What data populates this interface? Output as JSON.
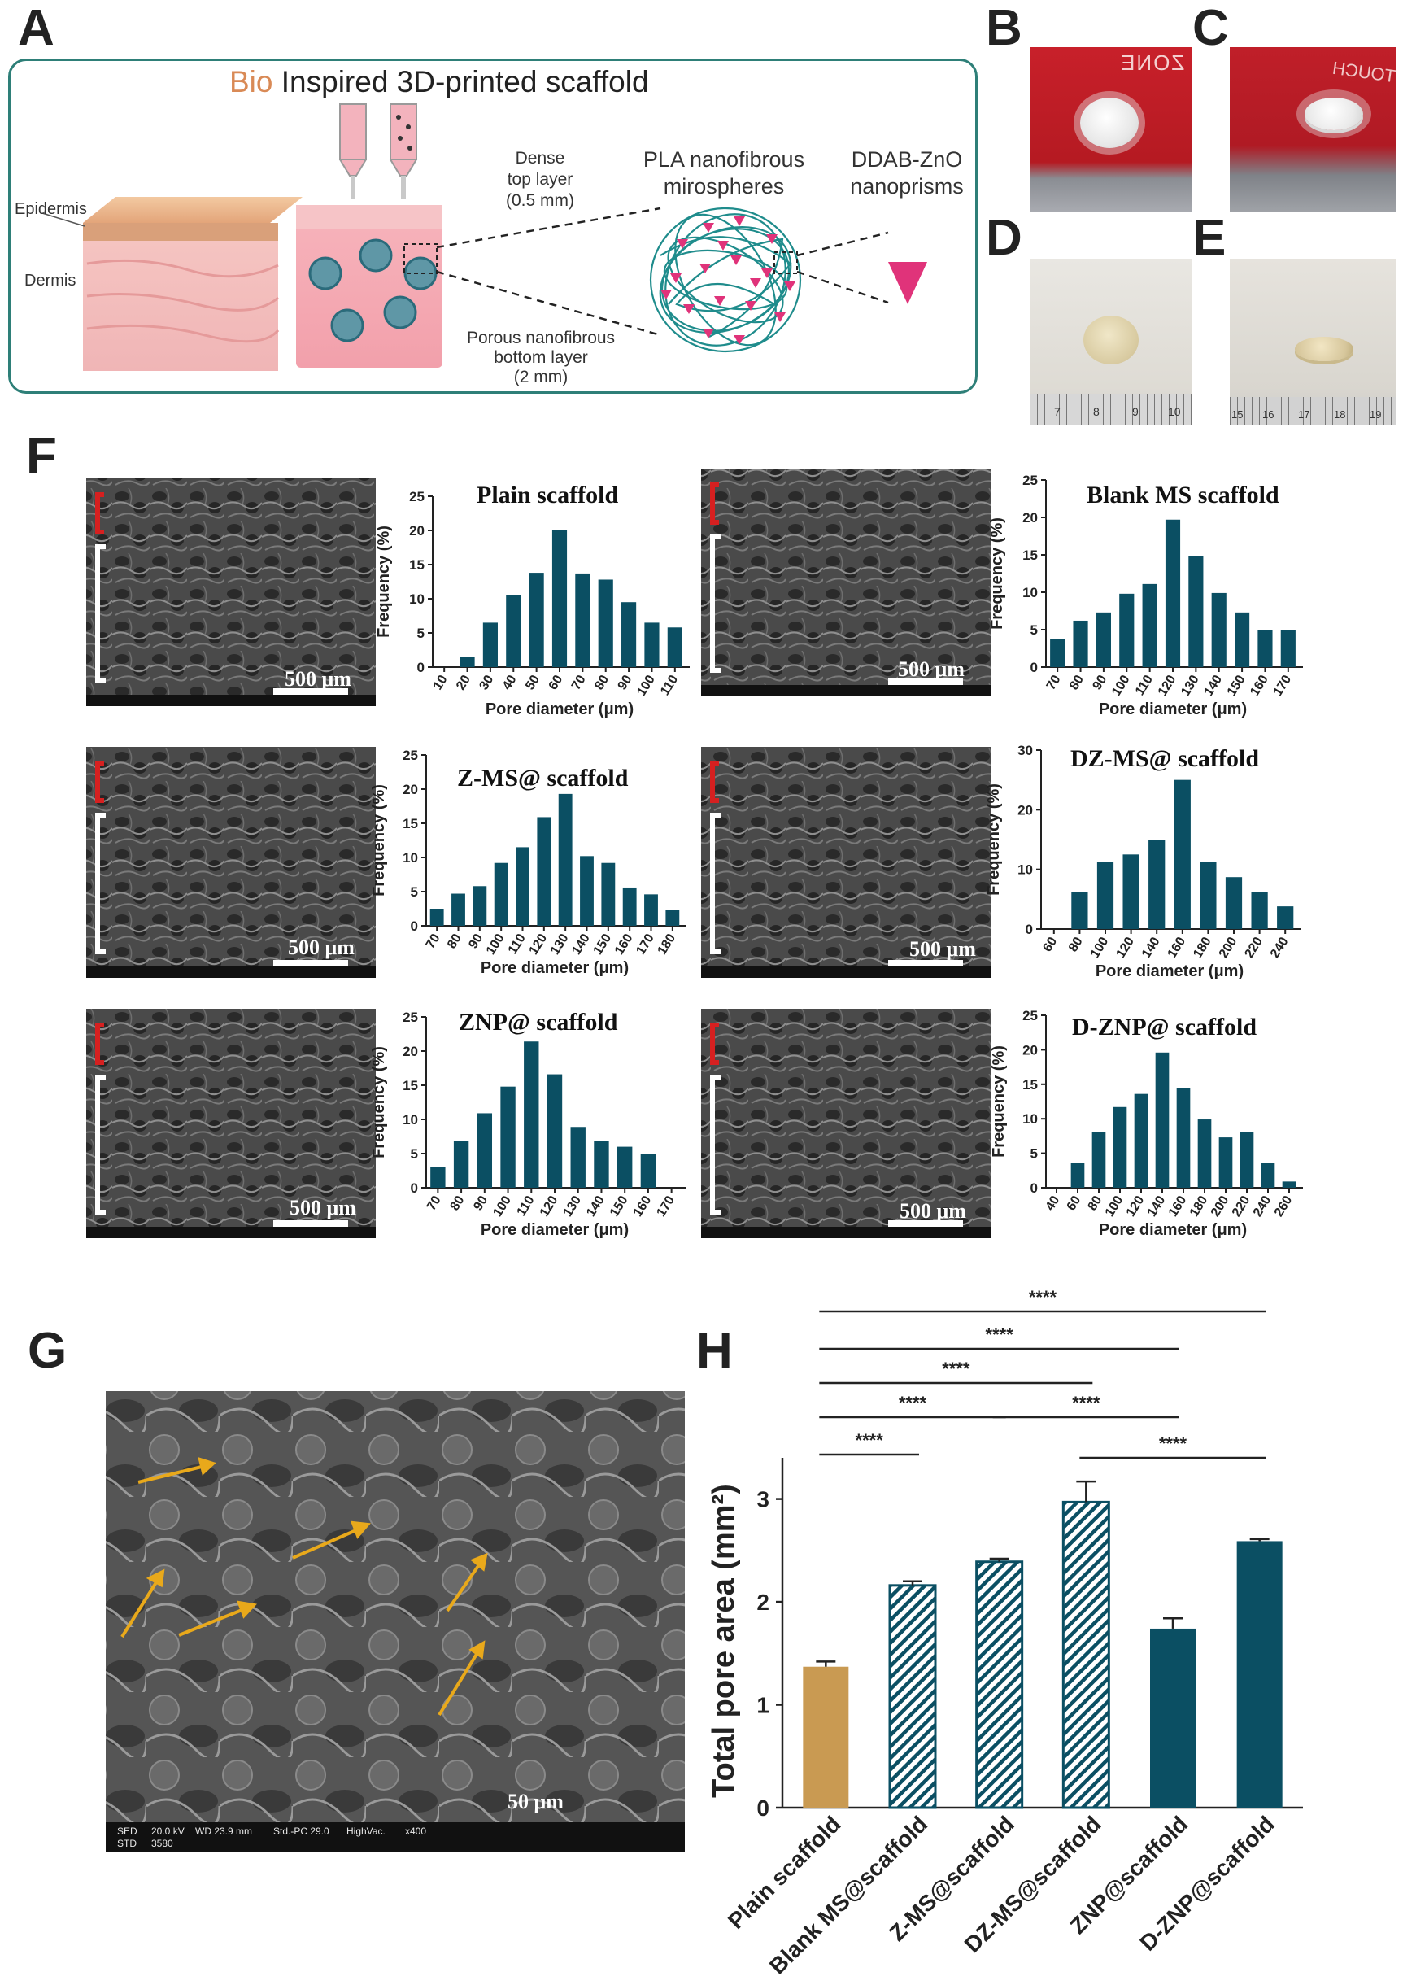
{
  "panels": {
    "A": "A",
    "B": "B",
    "C": "C",
    "D": "D",
    "E": "E",
    "F": "F",
    "G": "G",
    "H": "H"
  },
  "panelA": {
    "title_prefix": "Bio",
    "title_rest": " Inspired 3D-printed scaffold",
    "epidermis": "Epidermis",
    "dermis": "Dermis",
    "dense_line1": "Dense",
    "dense_line2": "top layer",
    "dense_line3": "(0.5 mm)",
    "pla_line1": "PLA nanofibrous",
    "pla_line2": "mirospheres",
    "ddab_line1": "DDAB-ZnO",
    "ddab_line2": "nanoprisms",
    "porous_line1": "Porous nanofibrous",
    "porous_line2": "bottom layer",
    "porous_line3": "(2 mm)"
  },
  "photoLabels": {
    "B_text": "ZONE",
    "C_text": "TOUCH",
    "D_ticks": [
      "7",
      "8",
      "9",
      "10"
    ],
    "E_ticks": [
      "15",
      "16",
      "17",
      "18",
      "19"
    ]
  },
  "sem": {
    "scale_500": "500 μm",
    "scale_50": "50 μm",
    "g_info": [
      "SED",
      "20.0 kV",
      "WD 23.9 mm",
      "Std.-PC 29.0",
      "HighVac.",
      "x400",
      "STD",
      "3580"
    ]
  },
  "colors": {
    "teal": "#0b4f63",
    "gold": "#c99a52",
    "box": "#2e7f78",
    "bracket_red": "#d62020",
    "arrow": "#e9a91b",
    "bio": "#d98a56"
  },
  "chart_data": [
    {
      "type": "bar",
      "title": "Plain scaffold",
      "xlabel": "Pore diameter (μm)",
      "ylabel": "Frequency (%)",
      "ylim": [
        0,
        25
      ],
      "yticks": [
        0,
        5,
        10,
        15,
        20,
        25
      ],
      "categories": [
        "10",
        "20",
        "30",
        "40",
        "50",
        "60",
        "70",
        "80",
        "90",
        "100",
        "110"
      ],
      "values": [
        0,
        1.5,
        6.5,
        10.5,
        13.8,
        20,
        13.7,
        12.8,
        9.5,
        6.5,
        5.8
      ]
    },
    {
      "type": "bar",
      "title": "Blank MS scaffold",
      "xlabel": "Pore diameter (μm)",
      "ylabel": "Frequency (%)",
      "ylim": [
        0,
        25
      ],
      "yticks": [
        0,
        5,
        10,
        15,
        20,
        25
      ],
      "categories": [
        "70",
        "80",
        "90",
        "100",
        "110",
        "120",
        "130",
        "140",
        "150",
        "160",
        "170"
      ],
      "values": [
        3.8,
        6.2,
        7.3,
        9.8,
        11.1,
        19.7,
        14.8,
        9.9,
        7.3,
        5,
        5
      ]
    },
    {
      "type": "bar",
      "title": "Z-MS@ scaffold",
      "xlabel": "Pore diameter (μm)",
      "ylabel": "Frequency (%)",
      "ylim": [
        0,
        25
      ],
      "yticks": [
        0,
        5,
        10,
        15,
        20,
        25
      ],
      "categories": [
        "70",
        "80",
        "90",
        "100",
        "110",
        "120",
        "130",
        "140",
        "150",
        "160",
        "170",
        "180"
      ],
      "values": [
        2.5,
        4.7,
        5.8,
        9.2,
        11.5,
        15.9,
        19.3,
        10.2,
        9.2,
        5.6,
        4.6,
        2.3
      ]
    },
    {
      "type": "bar",
      "title": "DZ-MS@ scaffold",
      "xlabel": "Pore diameter (μm)",
      "ylabel": "Frequency (%)",
      "ylim": [
        0,
        30
      ],
      "yticks": [
        0,
        10,
        20,
        30
      ],
      "categories": [
        "60",
        "80",
        "100",
        "120",
        "140",
        "160",
        "180",
        "200",
        "220",
        "240"
      ],
      "values": [
        0,
        6.2,
        11.2,
        12.5,
        15,
        25,
        11.2,
        8.7,
        6.2,
        3.8
      ]
    },
    {
      "type": "bar",
      "title": "ZNP@ scaffold",
      "xlabel": "Pore diameter (μm)",
      "ylabel": "Frequency (%)",
      "ylim": [
        0,
        25
      ],
      "yticks": [
        0,
        5,
        10,
        15,
        20,
        25
      ],
      "categories": [
        "70",
        "80",
        "90",
        "100",
        "110",
        "120",
        "130",
        "140",
        "150",
        "160",
        "170"
      ],
      "values": [
        3,
        6.8,
        10.9,
        14.8,
        21.4,
        16.6,
        8.9,
        6.9,
        6,
        5,
        0
      ]
    },
    {
      "type": "bar",
      "title": "D-ZNP@ scaffold",
      "xlabel": "Pore diameter (μm)",
      "ylabel": "Frequency (%)",
      "ylim": [
        0,
        25
      ],
      "yticks": [
        0,
        5,
        10,
        15,
        20,
        25
      ],
      "categories": [
        "40",
        "60",
        "80",
        "100",
        "120",
        "140",
        "160",
        "180",
        "200",
        "220",
        "240",
        "260"
      ],
      "values": [
        0,
        3.6,
        8.1,
        11.7,
        13.6,
        19.6,
        14.4,
        9.9,
        7.3,
        8.1,
        3.6,
        0.9
      ]
    },
    {
      "type": "bar",
      "title": "",
      "xlabel": "",
      "ylabel": "Total pore area (mm²)",
      "ylim": [
        0,
        3.4
      ],
      "yticks": [
        0,
        1,
        2,
        3
      ],
      "categories": [
        "Plain scaffold",
        "Blank MS@scaffold",
        "Z-MS@scaffold",
        "DZ-MS@scaffold",
        "ZNP@scaffold",
        "D-ZNP@scaffold"
      ],
      "values": [
        1.37,
        2.16,
        2.39,
        2.97,
        1.74,
        2.59
      ],
      "errors": [
        0.05,
        0.04,
        0.03,
        0.2,
        0.1,
        0.02
      ],
      "patterns": [
        "solid-gold",
        "hatched",
        "hatched",
        "hatched",
        "solid-teal",
        "solid-teal"
      ],
      "significance": [
        {
          "from": 0,
          "to": 5,
          "label": "****"
        },
        {
          "from": 0,
          "to": 4,
          "label": "****"
        },
        {
          "from": 0,
          "to": 3,
          "label": "****"
        },
        {
          "from": 0,
          "to": 2,
          "label": "****"
        },
        {
          "from": 2,
          "to": 4,
          "label": "****"
        },
        {
          "from": 0,
          "to": 1,
          "label": "****"
        },
        {
          "from": 3,
          "to": 5,
          "label": "****"
        }
      ]
    }
  ]
}
